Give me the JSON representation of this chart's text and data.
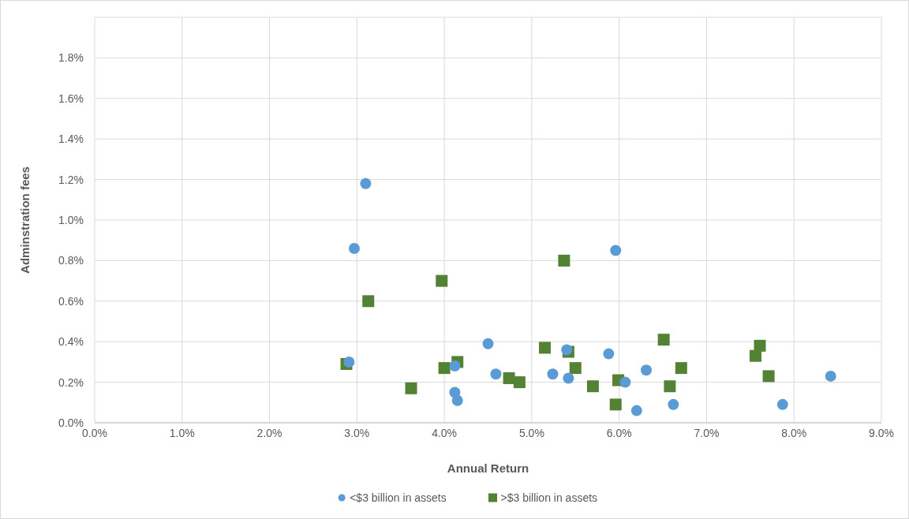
{
  "chart_data": {
    "type": "scatter",
    "xlabel": "Annual Return",
    "ylabel": "Adminstration fees",
    "xlim": [
      0,
      9
    ],
    "xticks": [
      {
        "value": 0,
        "label": "0.0%"
      },
      {
        "value": 1,
        "label": "1.0%"
      },
      {
        "value": 2,
        "label": "2.0%"
      },
      {
        "value": 3,
        "label": "3.0%"
      },
      {
        "value": 4,
        "label": "4.0%"
      },
      {
        "value": 5,
        "label": "5.0%"
      },
      {
        "value": 6,
        "label": "6.0%"
      },
      {
        "value": 7,
        "label": "7.0%"
      },
      {
        "value": 8,
        "label": "8.0%"
      },
      {
        "value": 9,
        "label": "9.0%"
      }
    ],
    "ylim": [
      0,
      2
    ],
    "yticks": [
      {
        "value": 0,
        "label": "0.0%"
      },
      {
        "value": 0.2,
        "label": "0.2%"
      },
      {
        "value": 0.4,
        "label": "0.4%"
      },
      {
        "value": 0.6,
        "label": "0.6%"
      },
      {
        "value": 0.8,
        "label": "0.8%"
      },
      {
        "value": 1,
        "label": "1.0%"
      },
      {
        "value": 1.2,
        "label": "1.2%"
      },
      {
        "value": 1.4,
        "label": "1.4%"
      },
      {
        "value": 1.6,
        "label": "1.6%"
      },
      {
        "value": 1.8,
        "label": "1.8%"
      },
      {
        "value": 2,
        "label": null
      }
    ],
    "grid": true,
    "legend": "bottom",
    "series": [
      {
        "name": "<$3 billion in assets",
        "color": "#5b9bd5",
        "marker": "circle",
        "x": [
          3.1,
          2.97,
          2.91,
          5.96,
          4.5,
          4.12,
          4.59,
          4.12,
          4.15,
          5.4,
          5.24,
          5.42,
          5.88,
          6.07,
          6.31,
          6.2,
          6.62,
          8.42,
          7.87
        ],
        "values": [
          1.18,
          0.86,
          0.3,
          0.85,
          0.39,
          0.28,
          0.24,
          0.15,
          0.11,
          0.36,
          0.24,
          0.22,
          0.34,
          0.2,
          0.26,
          0.06,
          0.09,
          0.23,
          0.09
        ]
      },
      {
        "name": ">$3 billion in assets",
        "color": "#548235",
        "marker": "square",
        "x": [
          2.88,
          3.13,
          3.97,
          5.37,
          3.62,
          4.0,
          4.15,
          4.74,
          4.86,
          5.15,
          5.42,
          5.5,
          5.7,
          5.99,
          5.96,
          6.51,
          6.58,
          6.71,
          7.56,
          7.61,
          7.71
        ],
        "values": [
          0.29,
          0.6,
          0.7,
          0.8,
          0.17,
          0.27,
          0.3,
          0.22,
          0.2,
          0.37,
          0.35,
          0.27,
          0.18,
          0.21,
          0.09,
          0.41,
          0.18,
          0.27,
          0.33,
          0.38,
          0.23
        ]
      }
    ]
  }
}
